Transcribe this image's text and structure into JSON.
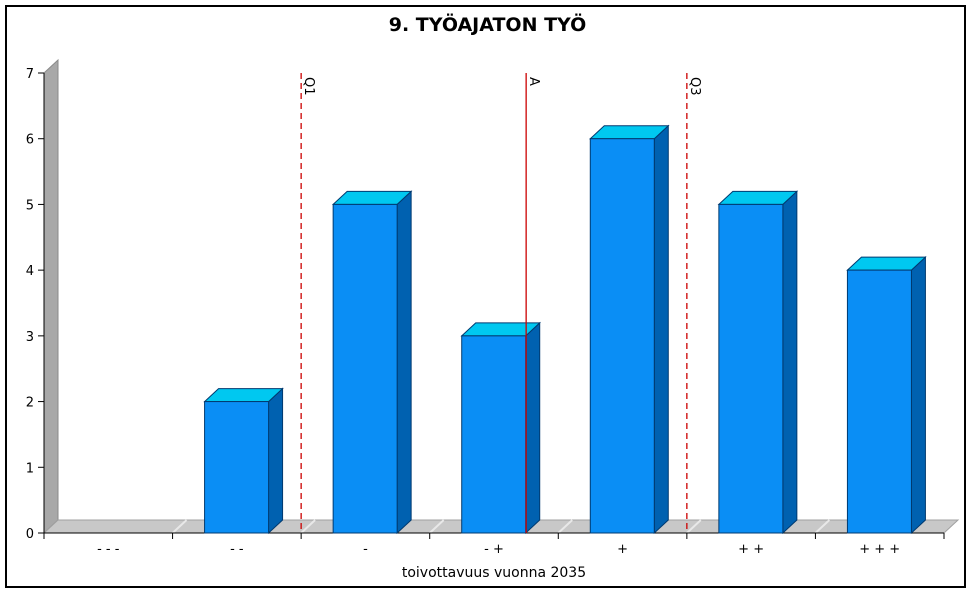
{
  "chart_data": {
    "type": "bar",
    "title": "9. TYÖAJATON TYÖ",
    "xlabel": "toivottavuus vuonna 2035",
    "ylabel": "",
    "categories": [
      "- - -",
      "- -",
      "-",
      "- +",
      "+",
      "+ +",
      "+ + +"
    ],
    "values": [
      0,
      2,
      5,
      3,
      6,
      5,
      4
    ],
    "ylim": [
      0,
      7
    ],
    "yticks": [
      "0",
      "1",
      "2",
      "3",
      "4",
      "5",
      "6",
      "7"
    ],
    "grid": false,
    "reference_lines": [
      {
        "label": "Q1",
        "position": 2.0,
        "style": "dashed"
      },
      {
        "label": "A",
        "position": 3.75,
        "style": "solid"
      },
      {
        "label": "Q3",
        "position": 5.0,
        "style": "dashed"
      }
    ],
    "colors": {
      "bar_front": "#0a8ef5",
      "bar_top": "#00c8f0",
      "bar_side": "#0061b0",
      "bar_outline": "#003a70",
      "wall": "#a8a8a8",
      "floor": "#c8c8c8",
      "reference_line": "#cc0000"
    }
  }
}
